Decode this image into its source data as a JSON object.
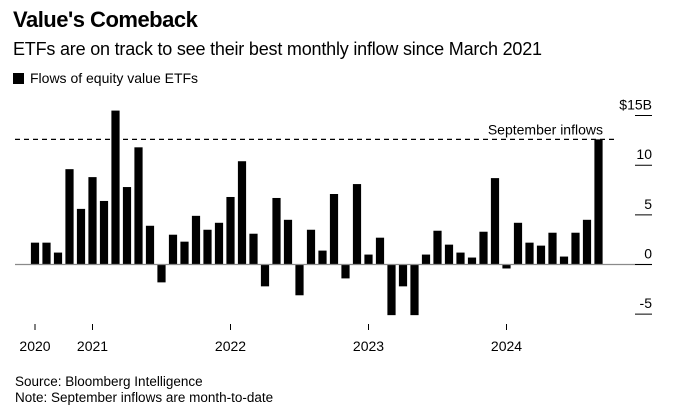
{
  "chart_data": {
    "type": "bar",
    "title": "Value's Comeback",
    "subtitle": "ETFs are on track to see their best monthly inflow since March 2021",
    "legend": [
      {
        "name": "Flows of equity value ETFs",
        "color": "#000000"
      }
    ],
    "legend_position": "top-left",
    "xlabel": "",
    "ylabel": "",
    "x_tick_labels": [
      {
        "label": "2020",
        "index": 0
      },
      {
        "label": "2021",
        "index": 5
      },
      {
        "label": "2022",
        "index": 17
      },
      {
        "label": "2023",
        "index": 29
      },
      {
        "label": "2024",
        "index": 41
      }
    ],
    "y_ticks": [
      {
        "value": 15,
        "label": "$15B"
      },
      {
        "value": 10,
        "label": "10"
      },
      {
        "value": 5,
        "label": "5"
      },
      {
        "value": 0,
        "label": "0"
      },
      {
        "value": -5,
        "label": "-5"
      }
    ],
    "ylim": [
      -5,
      15
    ],
    "grid": false,
    "categories": [
      "Aug 2020",
      "Sep 2020",
      "Oct 2020",
      "Nov 2020",
      "Dec 2020",
      "Jan 2021",
      "Feb 2021",
      "Mar 2021",
      "Apr 2021",
      "May 2021",
      "Jun 2021",
      "Jul 2021",
      "Aug 2021",
      "Sep 2021",
      "Oct 2021",
      "Nov 2021",
      "Dec 2021",
      "Jan 2022",
      "Feb 2022",
      "Mar 2022",
      "Apr 2022",
      "May 2022",
      "Jun 2022",
      "Jul 2022",
      "Aug 2022",
      "Sep 2022",
      "Oct 2022",
      "Nov 2022",
      "Dec 2022",
      "Jan 2023",
      "Feb 2023",
      "Mar 2023",
      "Apr 2023",
      "May 2023",
      "Jun 2023",
      "Jul 2023",
      "Aug 2023",
      "Sep 2023",
      "Oct 2023",
      "Nov 2023",
      "Dec 2023",
      "Jan 2024",
      "Feb 2024",
      "Mar 2024",
      "Apr 2024",
      "May 2024",
      "Jun 2024",
      "Jul 2024",
      "Aug 2024",
      "Sep 2024"
    ],
    "series": [
      {
        "name": "Flows of equity value ETFs",
        "color": "#000000",
        "values": [
          2.2,
          2.2,
          1.2,
          9.6,
          5.6,
          8.8,
          6.4,
          15.5,
          7.8,
          11.8,
          3.9,
          -1.8,
          3.0,
          2.3,
          4.9,
          3.5,
          4.2,
          6.8,
          10.4,
          3.1,
          -2.2,
          6.7,
          4.5,
          -3.1,
          3.5,
          1.4,
          7.1,
          -1.4,
          8.1,
          1.0,
          2.7,
          -5.1,
          -2.2,
          -5.1,
          1.0,
          3.4,
          2.0,
          1.2,
          0.7,
          3.3,
          8.7,
          -0.4,
          4.2,
          2.2,
          1.9,
          3.2,
          0.8,
          3.2,
          4.5,
          12.6
        ]
      }
    ],
    "reference_line": {
      "value": 12.6,
      "label": "September inflows",
      "style": "dashed"
    },
    "source": "Source: Bloomberg Intelligence",
    "note": "Note: September inflows are month-to-date"
  }
}
